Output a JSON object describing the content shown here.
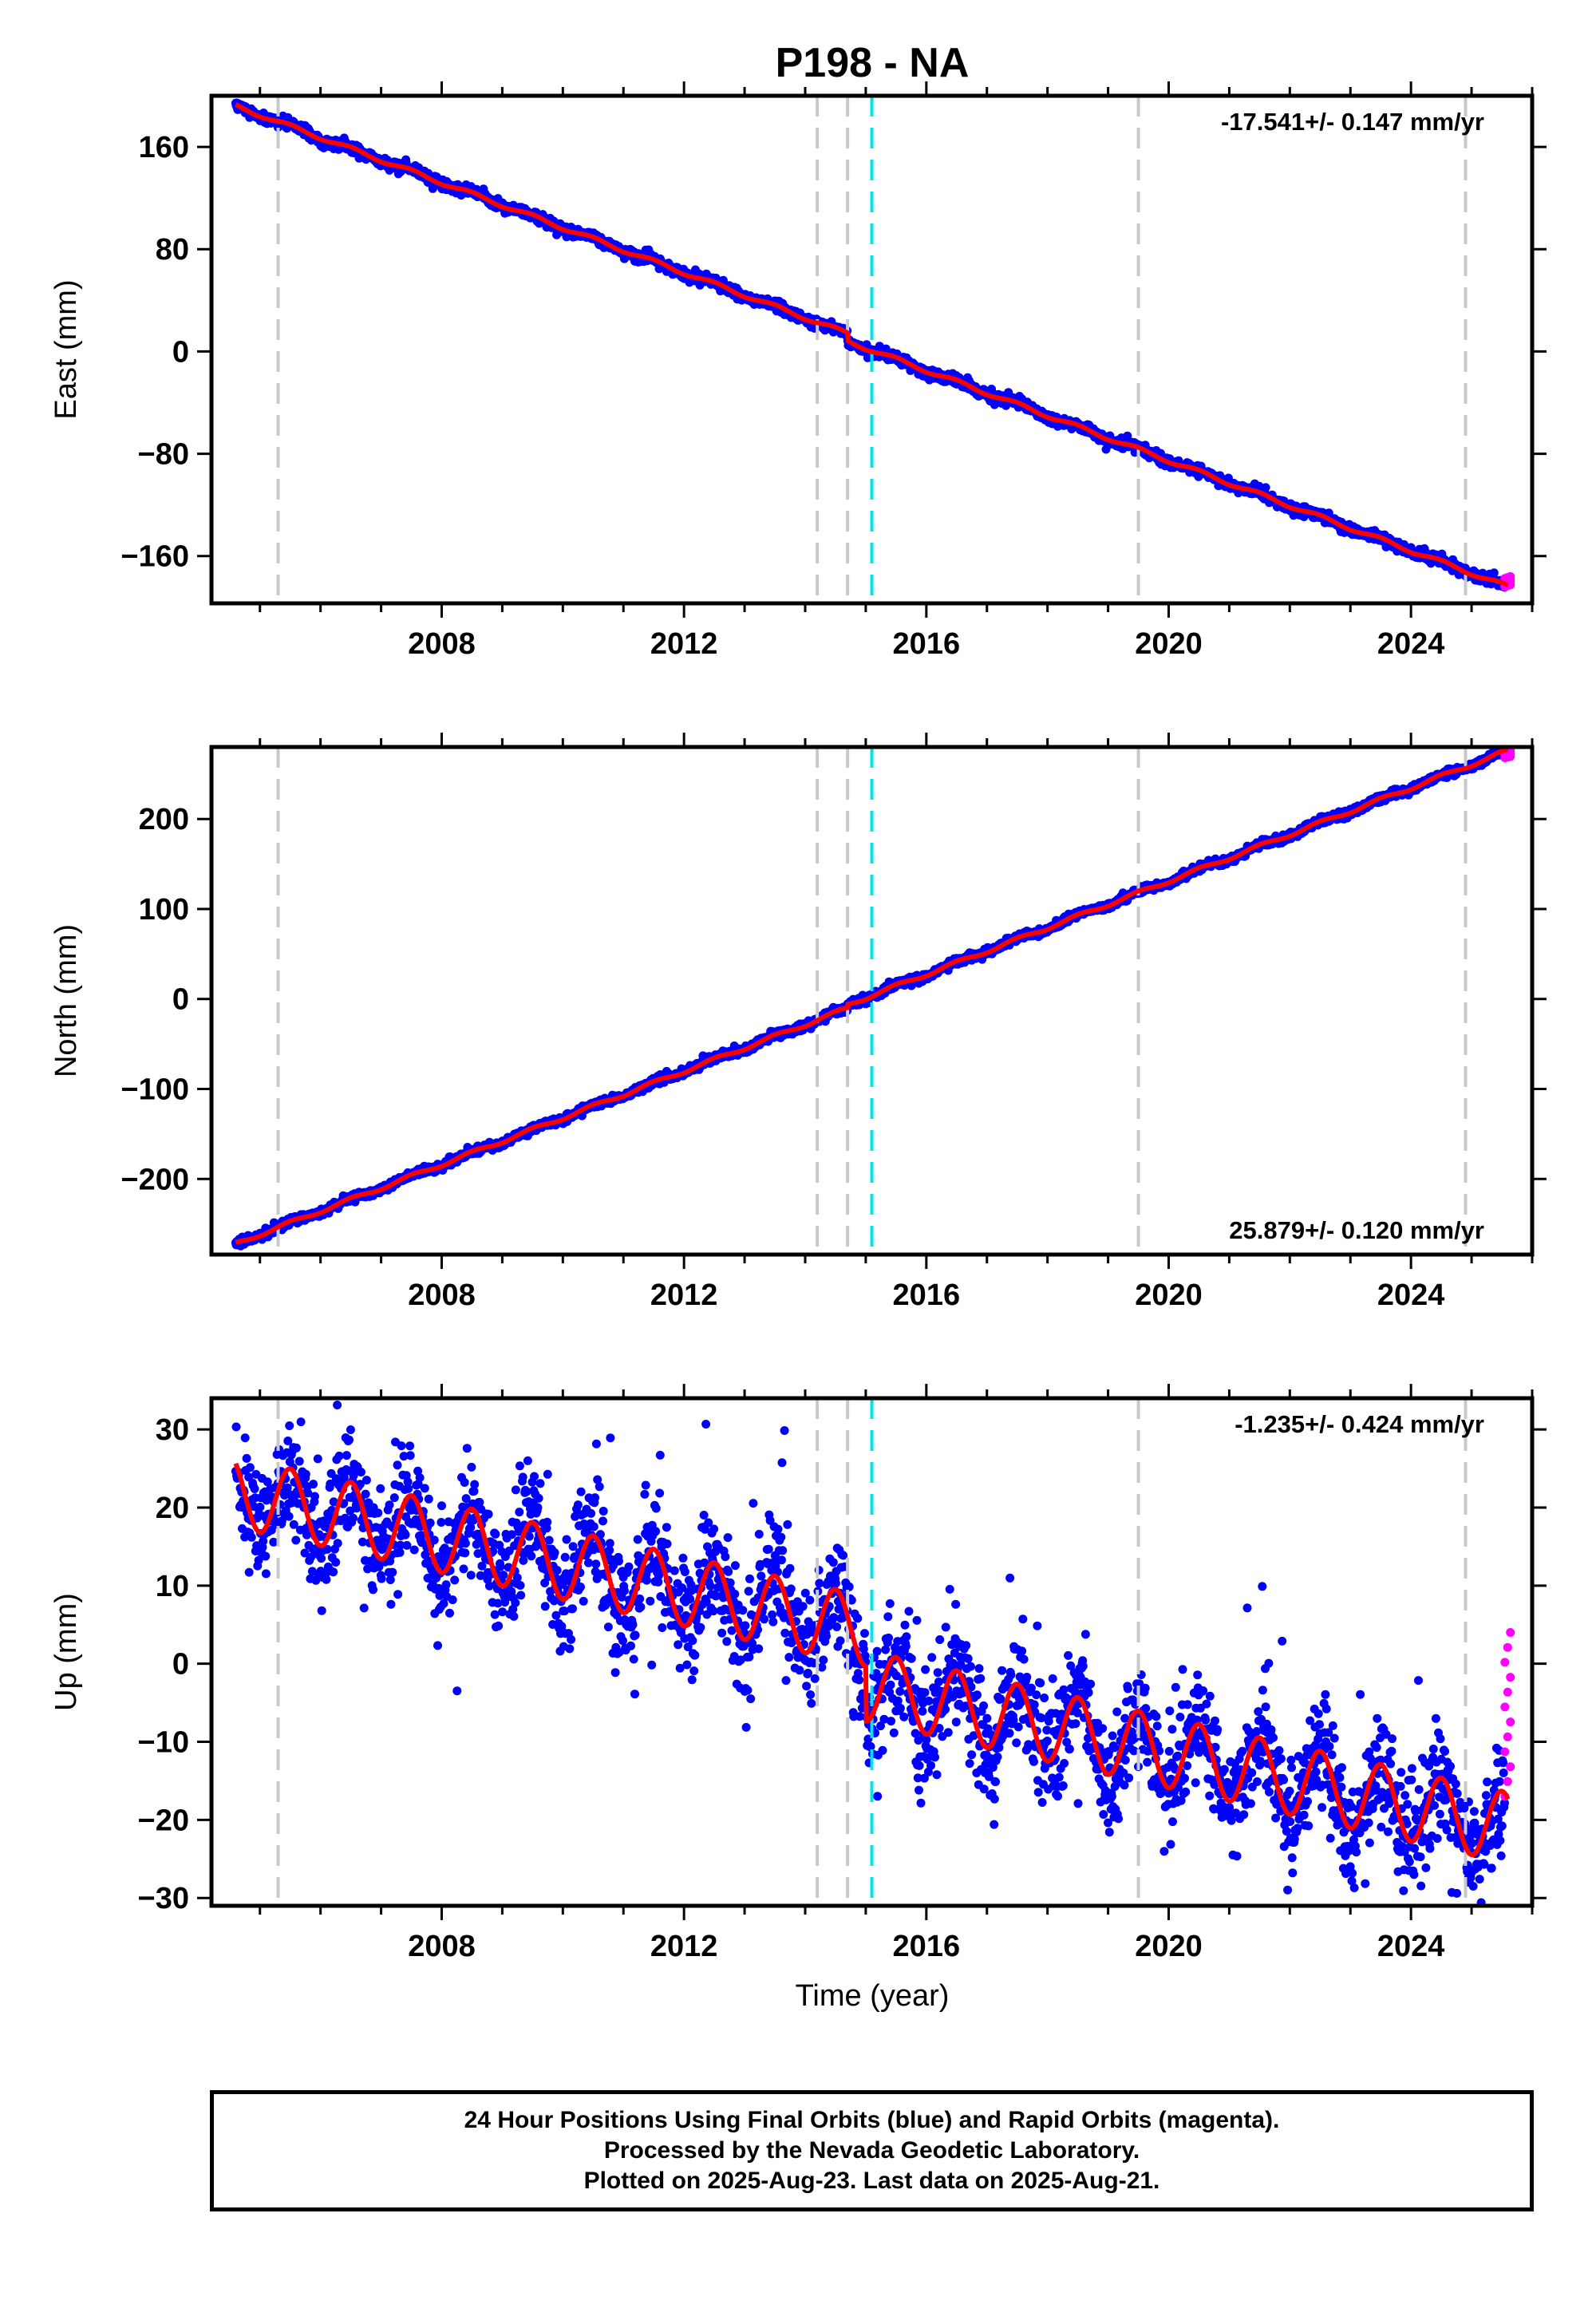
{
  "title": "P198 - NA",
  "xlabel": "Time (year)",
  "caption": [
    "24 Hour Positions Using Final Orbits (blue) and Rapid Orbits (magenta).",
    "Processed by the Nevada Geodetic Laboratory.",
    "Plotted on 2025-Aug-23. Last data on 2025-Aug-21."
  ],
  "colors": {
    "final": "#0000ff",
    "rapid": "#ff00ff",
    "model": "#ff0000",
    "step": "#c8c8c8",
    "antenna": "#00e5ee"
  },
  "chart_data": [
    {
      "type": "scatter",
      "component": "East",
      "ylabel": "East (mm)",
      "rate": "-17.541+/- 0.147 mm/yr",
      "rate_position": "top-right",
      "xlim": [
        2004.2,
        2026.0
      ],
      "ylim": [
        -197,
        200
      ],
      "xticks": [
        2008,
        2012,
        2016,
        2020,
        2024
      ],
      "yticks": [
        -160,
        -80,
        0,
        80,
        160
      ],
      "start": {
        "x": 2004.6,
        "y": 192
      },
      "end": {
        "x": 2025.6,
        "y": -178
      },
      "trend_mm_per_yr": -17.541,
      "seasonal_amplitude_mm": 1.5,
      "scatter_sd_mm": 2.0,
      "outlier_fraction": 0,
      "steps": [
        {
          "x": 2005.3,
          "dy": 0
        },
        {
          "x": 2014.2,
          "dy": 0
        },
        {
          "x": 2014.7,
          "dy": -6
        }
      ],
      "equipment_changes": [
        2005.3,
        2014.2,
        2014.7,
        2019.5,
        2024.9
      ],
      "antenna_change": 2015.1,
      "rapid": {
        "from": 2025.55,
        "to": 2025.64,
        "y_range": [
          -184,
          -176
        ]
      }
    },
    {
      "type": "scatter",
      "component": "North",
      "ylabel": "North (mm)",
      "rate": "25.879+/- 0.120 mm/yr",
      "rate_position": "bottom-right",
      "xlim": [
        2004.2,
        2026.0
      ],
      "ylim": [
        -284,
        280
      ],
      "xticks": [
        2008,
        2012,
        2016,
        2020,
        2024
      ],
      "yticks": [
        -200,
        -100,
        0,
        100,
        200
      ],
      "start": {
        "x": 2004.6,
        "y": -272
      },
      "end": {
        "x": 2025.6,
        "y": 272
      },
      "trend_mm_per_yr": 25.879,
      "seasonal_amplitude_mm": 2.0,
      "scatter_sd_mm": 2.2,
      "outlier_fraction": 0,
      "steps": [
        {
          "x": 2014.7,
          "dy": 4
        }
      ],
      "equipment_changes": [
        2005.3,
        2014.2,
        2014.7,
        2019.5,
        2024.9
      ],
      "antenna_change": 2015.1,
      "rapid": {
        "from": 2025.55,
        "to": 2025.64,
        "y_range": [
          268,
          276
        ]
      }
    },
    {
      "type": "scatter",
      "component": "Up",
      "ylabel": "Up (mm)",
      "rate": "-1.235+/- 0.424 mm/yr",
      "rate_position": "top-right",
      "xlim": [
        2004.2,
        2026.0
      ],
      "ylim": [
        -31,
        34
      ],
      "xticks": [
        2008,
        2012,
        2016,
        2020,
        2024
      ],
      "yticks": [
        -30,
        -20,
        -10,
        0,
        10,
        20,
        30
      ],
      "start": {
        "x": 2004.6,
        "y": 22
      },
      "end": {
        "x": 2025.6,
        "y": -14
      },
      "trend_mm_per_yr": -1.235,
      "seasonal_amplitude_mm": 4.5,
      "scatter_sd_mm": 3.6,
      "outlier_fraction": 0.012,
      "steps": [
        {
          "x": 2015.0,
          "dy": -7
        }
      ],
      "equipment_changes": [
        2005.3,
        2014.2,
        2014.7,
        2019.5,
        2024.9
      ],
      "antenna_change": 2015.1,
      "rapid": {
        "from": 2025.55,
        "to": 2025.64,
        "y_range": [
          -17,
          4
        ]
      }
    }
  ]
}
